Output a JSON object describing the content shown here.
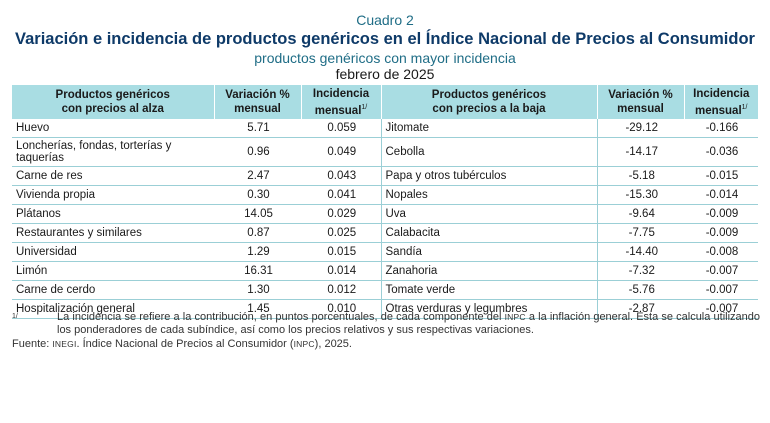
{
  "header": {
    "kicker": "Cuadro 2",
    "title": "Variación e incidencia de productos genéricos en el Índice Nacional de Precios al Consumidor",
    "subtitle": "productos genéricos con mayor incidencia",
    "period": "febrero de 2025"
  },
  "table": {
    "columns": {
      "up_product_line1": "Productos genéricos",
      "up_product_line2": "con precios al alza",
      "up_var_line1": "Variación %",
      "up_var_line2": "mensual",
      "up_inc_line1": "Incidencia",
      "up_inc_line2": "mensual",
      "down_product_line1": "Productos genéricos",
      "down_product_line2": "con precios a la baja",
      "down_var_line1": "Variación %",
      "down_var_line2": "mensual",
      "down_inc_line1": "Incidencia",
      "down_inc_line2": "mensual",
      "footnote_ref": "1/"
    },
    "rows": [
      {
        "up_product": "Huevo",
        "up_var": "5.71",
        "up_inc": "0.059",
        "down_product": "Jitomate",
        "down_var": "-29.12",
        "down_inc": "-0.166"
      },
      {
        "up_product": "Loncherías, fondas, torterías y taquerías",
        "up_var": "0.96",
        "up_inc": "0.049",
        "down_product": "Cebolla",
        "down_var": "-14.17",
        "down_inc": "-0.036"
      },
      {
        "up_product": "Carne de res",
        "up_var": "2.47",
        "up_inc": "0.043",
        "down_product": "Papa y otros tubérculos",
        "down_var": "-5.18",
        "down_inc": "-0.015"
      },
      {
        "up_product": "Vivienda propia",
        "up_var": "0.30",
        "up_inc": "0.041",
        "down_product": "Nopales",
        "down_var": "-15.30",
        "down_inc": "-0.014"
      },
      {
        "up_product": "Plátanos",
        "up_var": "14.05",
        "up_inc": "0.029",
        "down_product": "Uva",
        "down_var": "-9.64",
        "down_inc": "-0.009"
      },
      {
        "up_product": "Restaurantes y similares",
        "up_var": "0.87",
        "up_inc": "0.025",
        "down_product": "Calabacita",
        "down_var": "-7.75",
        "down_inc": "-0.009"
      },
      {
        "up_product": "Universidad",
        "up_var": "1.29",
        "up_inc": "0.015",
        "down_product": "Sandía",
        "down_var": "-14.40",
        "down_inc": "-0.008"
      },
      {
        "up_product": "Limón",
        "up_var": "16.31",
        "up_inc": "0.014",
        "down_product": "Zanahoria",
        "down_var": "-7.32",
        "down_inc": "-0.007"
      },
      {
        "up_product": "Carne de cerdo",
        "up_var": "1.30",
        "up_inc": "0.012",
        "down_product": "Tomate verde",
        "down_var": "-5.76",
        "down_inc": "-0.007"
      },
      {
        "up_product": "Hospitalización general",
        "up_var": "1.45",
        "up_inc": "0.010",
        "down_product": "Otras verduras y legumbres",
        "down_var": "-2.87",
        "down_inc": "-0.007"
      }
    ]
  },
  "notes": {
    "footnote_mark": "1/",
    "footnote_text_a": "La incidencia se refiere a la contribución, en puntos porcentuales, de cada componente del ",
    "footnote_inpc": "INPC",
    "footnote_text_b": " a la inflación general. Esta se calcula utilizando los ponderadores de cada subíndice, así como los precios relativos y sus respectivas variaciones.",
    "source_prefix": "Fuente: ",
    "source_inegi": "INEGI",
    "source_mid": ". Índice Nacional de Precios al Consumidor (",
    "source_inpc": "INPC",
    "source_end": "), 2025."
  },
  "colors": {
    "header_fill": "#a9dde3",
    "rule": "#9bcfd6",
    "title": "#0e3a68",
    "subtitle": "#1f6d86"
  }
}
